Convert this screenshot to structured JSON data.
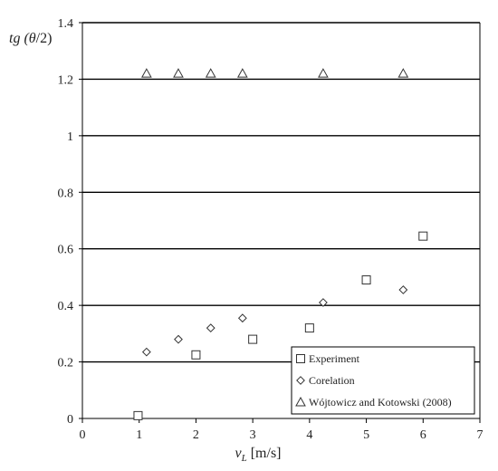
{
  "chart_data": {
    "type": "scatter",
    "title": "",
    "xlabel": "v_L [m/s]",
    "xlabel_var": "v",
    "xlabel_sub": "L",
    "xlabel_unit": " [m/s]",
    "ylabel": "tg (θ/2)",
    "ylabel_prefix": "tg (",
    "ylabel_var": "θ",
    "ylabel_suffix": "/2)",
    "xlim": [
      0,
      7
    ],
    "ylim": [
      0,
      1.4
    ],
    "x_ticks": [
      0,
      1,
      2,
      3,
      4,
      5,
      6,
      7
    ],
    "x_tick_labels": [
      "0",
      "1",
      "2",
      "3",
      "4",
      "5",
      "6",
      "7"
    ],
    "y_ticks": [
      0,
      0.2,
      0.4,
      0.6,
      0.8,
      1.0,
      1.2,
      1.4
    ],
    "y_tick_labels": [
      "0",
      "0.2",
      "0.4",
      "0.6",
      "0.8",
      "1",
      "1.2",
      "1.4"
    ],
    "grid": "horizontal",
    "legend_position": "bottom-right",
    "series": [
      {
        "name": "Experiment",
        "marker": "square",
        "x": [
          0.98,
          2.0,
          3.0,
          4.0,
          5.0,
          6.0
        ],
        "y": [
          0.01,
          0.225,
          0.28,
          0.32,
          0.49,
          0.645
        ]
      },
      {
        "name": "Corelation",
        "marker": "diamond",
        "x": [
          1.13,
          1.69,
          2.26,
          2.82,
          4.24,
          5.65
        ],
        "y": [
          0.235,
          0.28,
          0.32,
          0.355,
          0.41,
          0.455
        ]
      },
      {
        "name": "Wójtowicz and Kotowski (2008)",
        "marker": "triangle",
        "x": [
          1.13,
          1.69,
          2.26,
          2.82,
          4.24,
          5.65
        ],
        "y": [
          1.22,
          1.22,
          1.22,
          1.22,
          1.22,
          1.22
        ]
      }
    ]
  }
}
